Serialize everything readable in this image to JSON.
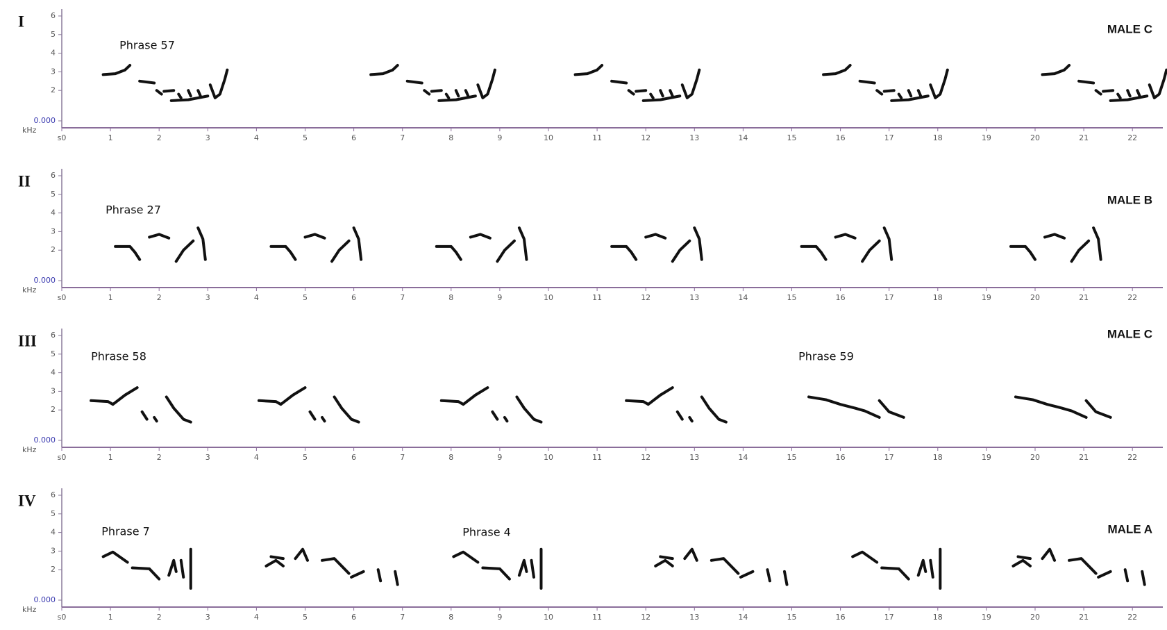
{
  "axis": {
    "yticks": [
      "6",
      "5",
      "4",
      "3",
      "2",
      "0.000"
    ],
    "unit": "kHz",
    "xticks": [
      "s0",
      "1",
      "2",
      "3",
      "4",
      "5",
      "6",
      "7",
      "8",
      "9",
      "10",
      "11",
      "12",
      "13",
      "14",
      "15",
      "16",
      "17",
      "18",
      "19",
      "20",
      "21",
      "22"
    ]
  },
  "panels": [
    {
      "label": "I",
      "male": "MALE C",
      "phrases": [
        "Phrase 57"
      ]
    },
    {
      "label": "II",
      "male": "MALE B",
      "phrases": [
        "Phrase 27"
      ]
    },
    {
      "label": "III",
      "male": "MALE C",
      "phrases": [
        "Phrase 58",
        "Phrase 59"
      ]
    },
    {
      "label": "IV",
      "male": "MALE A",
      "phrases": [
        "Phrase 7",
        "Phrase 4"
      ]
    }
  ]
}
